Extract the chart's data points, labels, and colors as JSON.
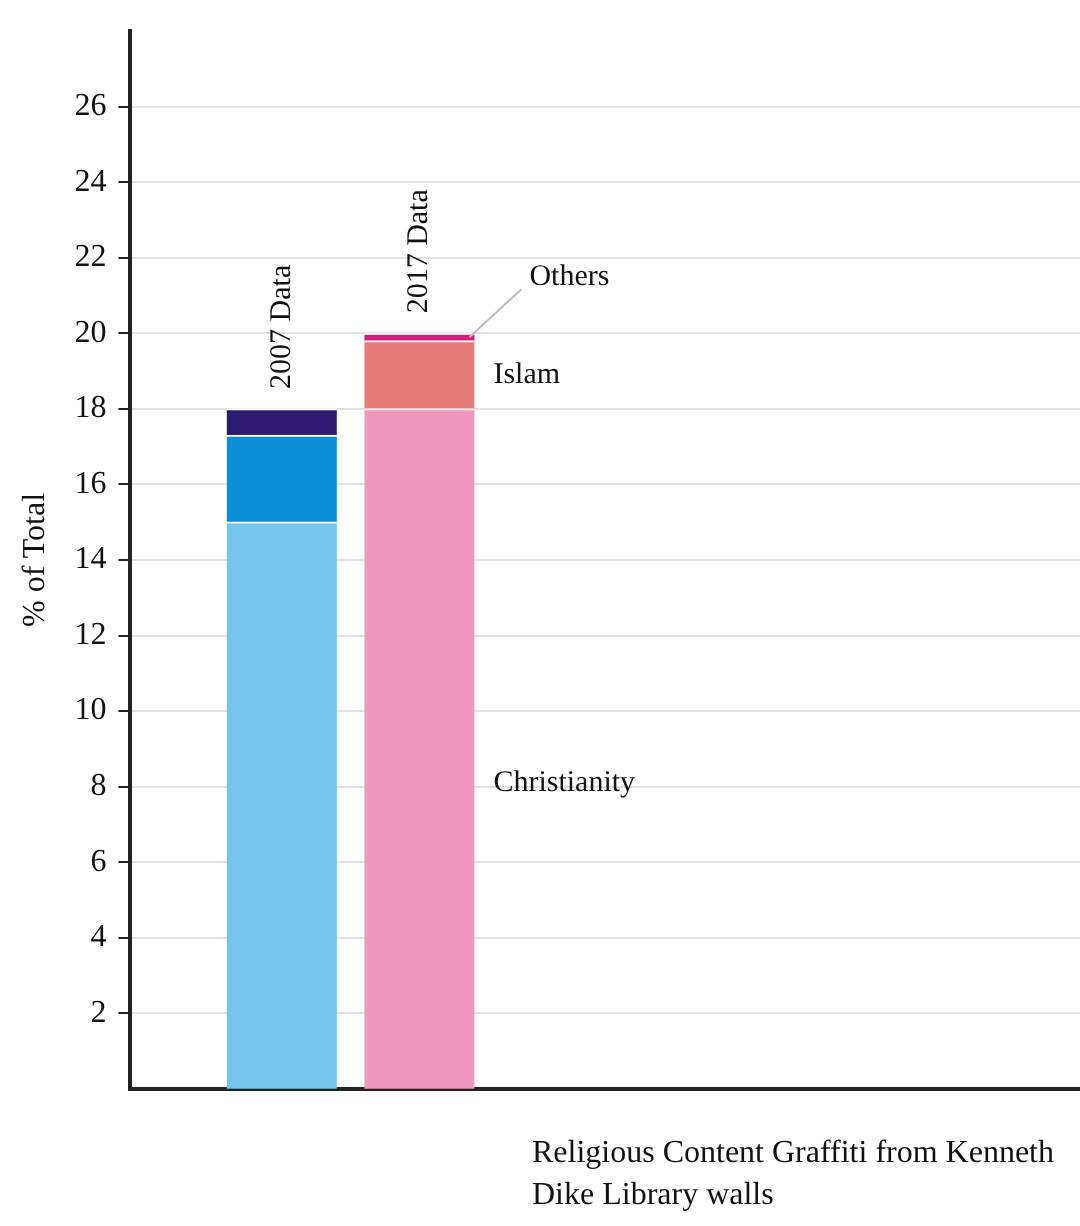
{
  "chart_data": {
    "type": "bar",
    "stacked": true,
    "categories": [
      "2007 Data",
      "2017 Data"
    ],
    "series": [
      {
        "name": "Christianity",
        "colors": [
          "#74c4ec",
          "#ee98bc"
        ],
        "values": [
          15,
          18
        ]
      },
      {
        "name": "Islam",
        "colors": [
          "#0a8fd6",
          "#e57a78"
        ],
        "values": [
          2.3,
          1.8
        ]
      },
      {
        "name": "Others",
        "colors": [
          "#2b1a6e",
          "#d41e7a"
        ],
        "values": [
          0.7,
          0.2
        ]
      }
    ],
    "ylabel": "% of Total",
    "xlabel": "Religious Content Graffiti from Kenneth Dike Library walls",
    "ylim": [
      0,
      28
    ],
    "yticks": [
      2,
      4,
      6,
      8,
      10,
      12,
      14,
      16,
      18,
      20,
      22,
      24,
      26
    ],
    "grid": "y",
    "legend": false
  }
}
